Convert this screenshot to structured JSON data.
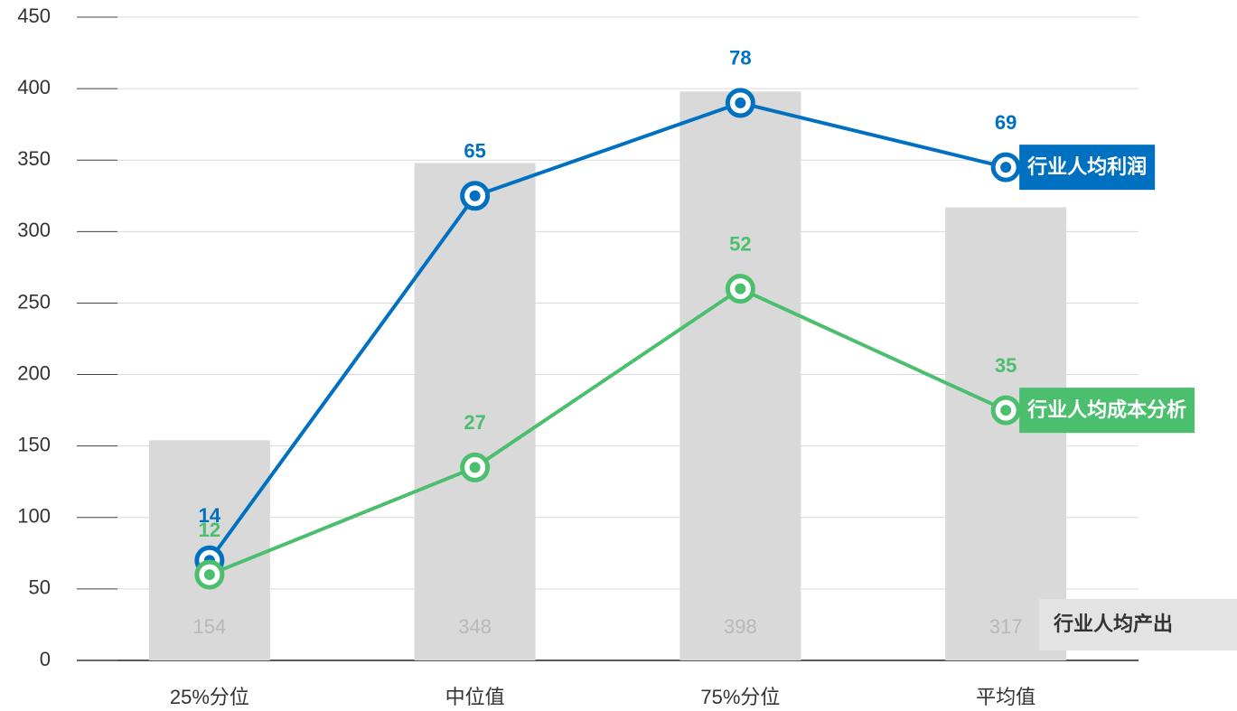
{
  "chart_data": {
    "type": "bar-line",
    "categories": [
      "25%分位",
      "中位值",
      "75%分位",
      "平均值"
    ],
    "series": [
      {
        "name": "行业人均产出",
        "type": "bar",
        "color": "#d9d9d9",
        "values": [
          154,
          348,
          398,
          317
        ]
      },
      {
        "name": "行业人均利润",
        "type": "line",
        "axis": "y2",
        "color": "#0070c0",
        "values": [
          14,
          65,
          78,
          69
        ]
      },
      {
        "name": "行业人均成本分析",
        "type": "line",
        "axis": "y2",
        "color": "#4cbf6e",
        "values": [
          12,
          27,
          52,
          35
        ]
      }
    ],
    "ylim": [
      0,
      450
    ],
    "yticks": [
      0,
      50,
      100,
      150,
      200,
      250,
      300,
      350,
      400,
      450
    ],
    "y2lim": [
      0,
      90
    ],
    "grid": true
  }
}
